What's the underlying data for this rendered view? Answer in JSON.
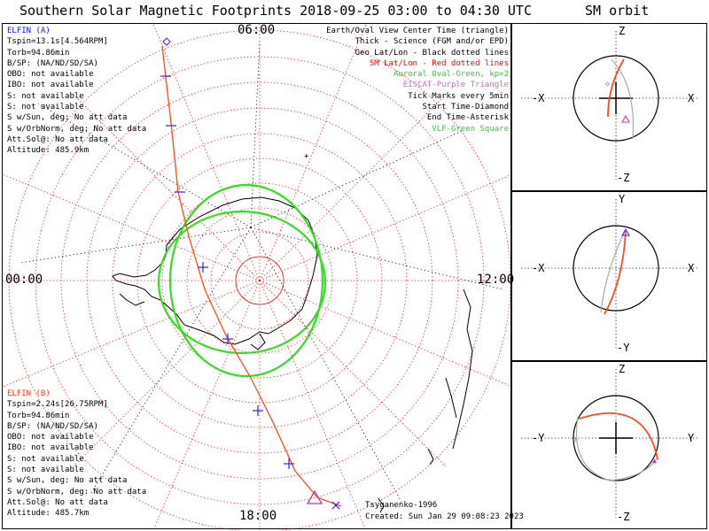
{
  "title": "Southern Solar Magnetic Footprints 2018-09-25 03:00 to 04:30 UTC",
  "orbit_title": "SM orbit",
  "map": {
    "clock_labels": {
      "top": "06:00",
      "bottom": "18:00",
      "left": "00:00",
      "right": "12:00"
    },
    "credit_author": "Tsyganenko-1996",
    "credit_created": "Created: Sun Jan 29 09:08:23 2023"
  },
  "legend": [
    {
      "text": "Earth/Oval View Center Time (triangle)",
      "color": "#000000"
    },
    {
      "text": "Thick - Science (FGM and/or EPD)",
      "color": "#000000"
    },
    {
      "text": "Geo Lat/Lon - Black dotted lines",
      "color": "#000000"
    },
    {
      "text": "SM Lat/Lon - Red dotted lines",
      "color": "#ff0000"
    },
    {
      "text": "Auroral Oval-Green, kp=2",
      "color": "#33cc33"
    },
    {
      "text": "EISCAT-Purple Triangle",
      "color": "#cc66cc"
    },
    {
      "text": "Tick Marks every 5min",
      "color": "#000000"
    },
    {
      "text": "Start Time-Diamond",
      "color": "#000000"
    },
    {
      "text": "End Time-Asterisk",
      "color": "#000000"
    },
    {
      "text": "VLF-Green Square",
      "color": "#33cc33"
    }
  ],
  "elfin_a": {
    "header": "ELFIN (A)",
    "lines": [
      "Tspin=13.1s[4.564RPM]",
      "Torb=94.86min",
      "B/SP: (NA/ND/SD/SA)",
      "OBO: not available",
      "IBO: not available",
      "S: not available",
      "S: not available",
      "S w/Sun, deg: No att data",
      "S w/OrbNorm, deg: No att data",
      "Att.Sol@: No att data",
      "Altitude: 485.9km"
    ]
  },
  "elfin_b": {
    "header": "ELFIN (B)",
    "lines": [
      "Tspin=2.24s[26.75RPM]",
      "Torb=94.86min",
      "B/SP: (NA/ND/SD/SA)",
      "OBO: not available",
      "IBO: not available",
      "S: not available",
      "S: not available",
      "S w/Sun, deg: No att data",
      "S w/OrbNorm, deg: No att data",
      "Att.Sol@: No att data",
      "Altitude: 485.7km"
    ]
  },
  "orbit_panels": [
    {
      "top": "Z",
      "bottom": "-Z",
      "left": "-X",
      "right": "X"
    },
    {
      "top": "Y",
      "bottom": "-Y",
      "left": "-X",
      "right": "X"
    },
    {
      "top": "Z",
      "bottom": "-Z",
      "left": "-Y",
      "right": "Y"
    }
  ],
  "colors": {
    "track": "#ff4a1a",
    "tick": "#3b1aff",
    "sm_grid": "#ff0000",
    "geo_grid": "#000000",
    "oval": "#33dd22",
    "orbit_b": "#aaaaaa"
  }
}
